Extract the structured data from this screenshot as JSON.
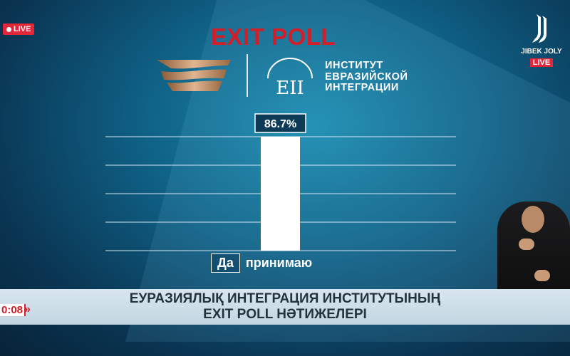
{
  "live_badge": "LIVE",
  "title": "EXIT POLL",
  "institute": {
    "line1": "ИНСТИТУТ",
    "line2": "ЕВРАЗИЙСКОЙ",
    "line3": "ИНТЕГРАЦИИ",
    "logo_text": "ЕII"
  },
  "channel": {
    "name": "JIBEK JOLY",
    "live": "LIVE"
  },
  "chart_data": {
    "type": "bar",
    "categories": [
      "Да принимаю"
    ],
    "category_parts": [
      "Да",
      "принимаю"
    ],
    "values": [
      86.7
    ],
    "data_labels": [
      "86.7%"
    ],
    "ylim": [
      0,
      86.7
    ],
    "grid": true,
    "bar_color": "#ffffff",
    "label_bg": "#0d3a57"
  },
  "ticker": {
    "line1": "ЕУРАЗИЯЛЫҚ ИНТЕГРАЦИЯ ИНСТИТУТЫНЫҢ",
    "line2": "EXIT POLL НӘТИЖЕЛЕРІ",
    "clock": "0:08",
    "clock_color": "#d21e28"
  }
}
